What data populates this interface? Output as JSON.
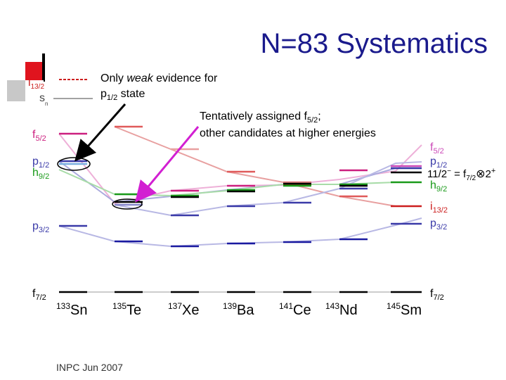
{
  "slide": {
    "title": "N=83 Systematics",
    "footer": "INPC Jun 2007"
  },
  "annotations": {
    "p12_note_line1_pre": "Only ",
    "p12_note_line1_em": "weak",
    "p12_note_line1_post": " evidence for",
    "p12_note_line2_pre": "p",
    "p12_note_line2_sub": "1/2",
    "p12_note_line2_post": " state",
    "f52_note_line1_pre": "Tentatively assigned f",
    "f52_note_line1_sub": "5/2",
    "f52_note_line1_post": ";",
    "f52_note_line2": "other candidates at higher energies"
  },
  "legend_key": {
    "i_symbol": "i",
    "i_sub": "13/2",
    "s_symbol": "s",
    "s_sub": "n"
  },
  "left_labels": [
    {
      "id": "f52",
      "sym": "f",
      "sub": "5/2",
      "color": "#cc1f7f"
    },
    {
      "id": "p12",
      "sym": "p",
      "sub": "1/2",
      "color": "#3a3aa8"
    },
    {
      "id": "h92",
      "sym": "h",
      "sub": "9/2",
      "color": "#1a9a1a"
    },
    {
      "id": "p32",
      "sym": "p",
      "sub": "3/2",
      "color": "#3a3aa8"
    },
    {
      "id": "f72",
      "sym": "f",
      "sub": "7/2",
      "color": "#000000"
    }
  ],
  "right_labels": [
    {
      "id": "f52",
      "sym": "f",
      "sub": "5/2",
      "color": "#cc4ab8"
    },
    {
      "id": "p12",
      "sym": "p",
      "sub": "1/2",
      "color": "#3a3aa8"
    },
    {
      "id": "h92",
      "sym": "h",
      "sub": "9/2",
      "color": "#1a9a1a"
    },
    {
      "id": "i132",
      "sym": "i",
      "sub": "13/2",
      "color": "#cc1f1f"
    },
    {
      "id": "p32",
      "sym": "p",
      "sub": "3/2",
      "color": "#3a3aa8"
    },
    {
      "id": "f72",
      "sym": "f",
      "sub": "7/2",
      "color": "#000000"
    }
  ],
  "right_multiplet": {
    "pre": "11/2",
    "sup": "−",
    "mid": " = f",
    "sub": "7/2",
    "sym": "⊗",
    "post": "2",
    "post_sup": "+"
  },
  "isotopes": [
    {
      "mass": "133",
      "symbol": "Sn"
    },
    {
      "mass": "135",
      "symbol": "Te"
    },
    {
      "mass": "137",
      "symbol": "Xe"
    },
    {
      "mass": "139",
      "symbol": "Ba"
    },
    {
      "mass": "141",
      "symbol": "Ce"
    },
    {
      "mass": "143",
      "symbol": "Nd"
    },
    {
      "mass": "145",
      "symbol": "Sm"
    }
  ]
}
